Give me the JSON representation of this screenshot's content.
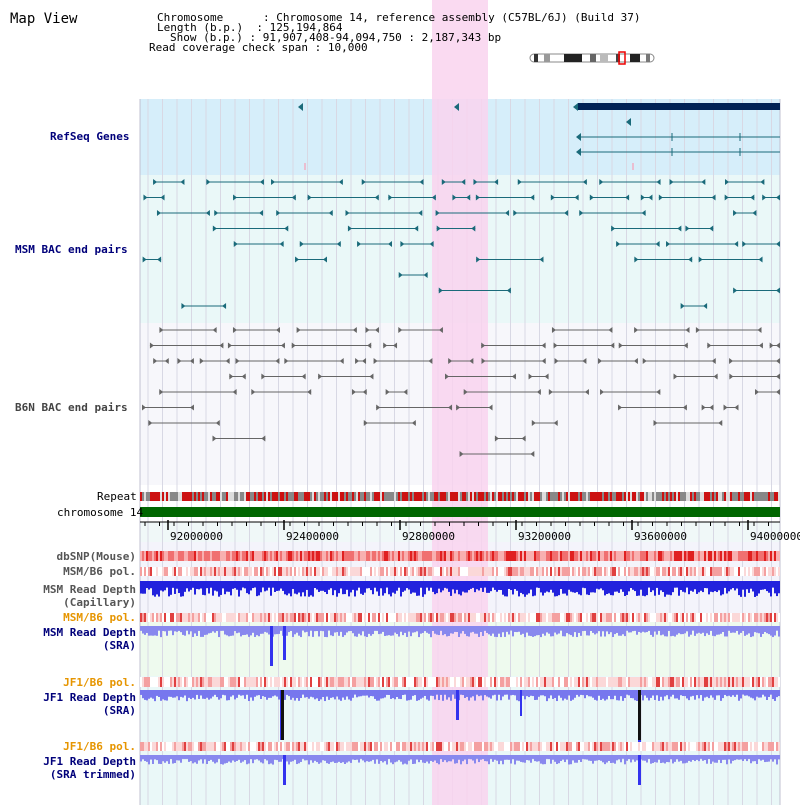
{
  "header": {
    "title": "Map View",
    "rows": [
      {
        "key": "Chromosome",
        "value": "Chromosome 14, reference assembly (C57BL/6J) (Build 37)"
      },
      {
        "key": "Length (b.p.)",
        "value": "125,194,864"
      },
      {
        "key": "Show (b.p.)",
        "value": "91,907,408-94,094,750 : 2,187,343 bp"
      },
      {
        "key": "Read coverage check span",
        "value": "10,000"
      }
    ]
  },
  "tracks": {
    "refseq_genes": "RefSeq Genes",
    "msm_bac": "MSM BAC end pairs",
    "b6n_bac": "B6N BAC end pairs",
    "repeat": "Repeat",
    "chromosome": "chromosome 14",
    "dbsnp": "dbSNP(Mouse)",
    "msm_b6_pol": "MSM/B6 pol.",
    "msm_read_depth_cap": [
      "MSM Read Depth",
      "(Capillary)"
    ],
    "msm_b6_pol_2": "MSM/B6 pol.",
    "msm_read_depth_sra": [
      "MSM Read Depth",
      "(SRA)"
    ],
    "jf1_b6_pol": "JF1/B6 pol.",
    "jf1_read_depth_sra": [
      "JF1 Read Depth",
      "(SRA)"
    ],
    "jf1_b6_pol_2": "JF1/B6 pol.",
    "jf1_read_depth_trim": [
      "JF1 Read Depth",
      "(SRA trimmed)"
    ]
  },
  "axis": {
    "ticks": [
      "92000000",
      "92400000",
      "92800000",
      "93200000",
      "93600000",
      "94000000"
    ]
  },
  "colors": {
    "highlight": "#f9d3ef",
    "refseq_bg": "#d6eefa",
    "bac_bg": "#eaf8f8",
    "depth_blue": "#3333ee",
    "chromosome_green": "#006600",
    "label_navy": "#00007a",
    "label_orange": "#e69500"
  }
}
